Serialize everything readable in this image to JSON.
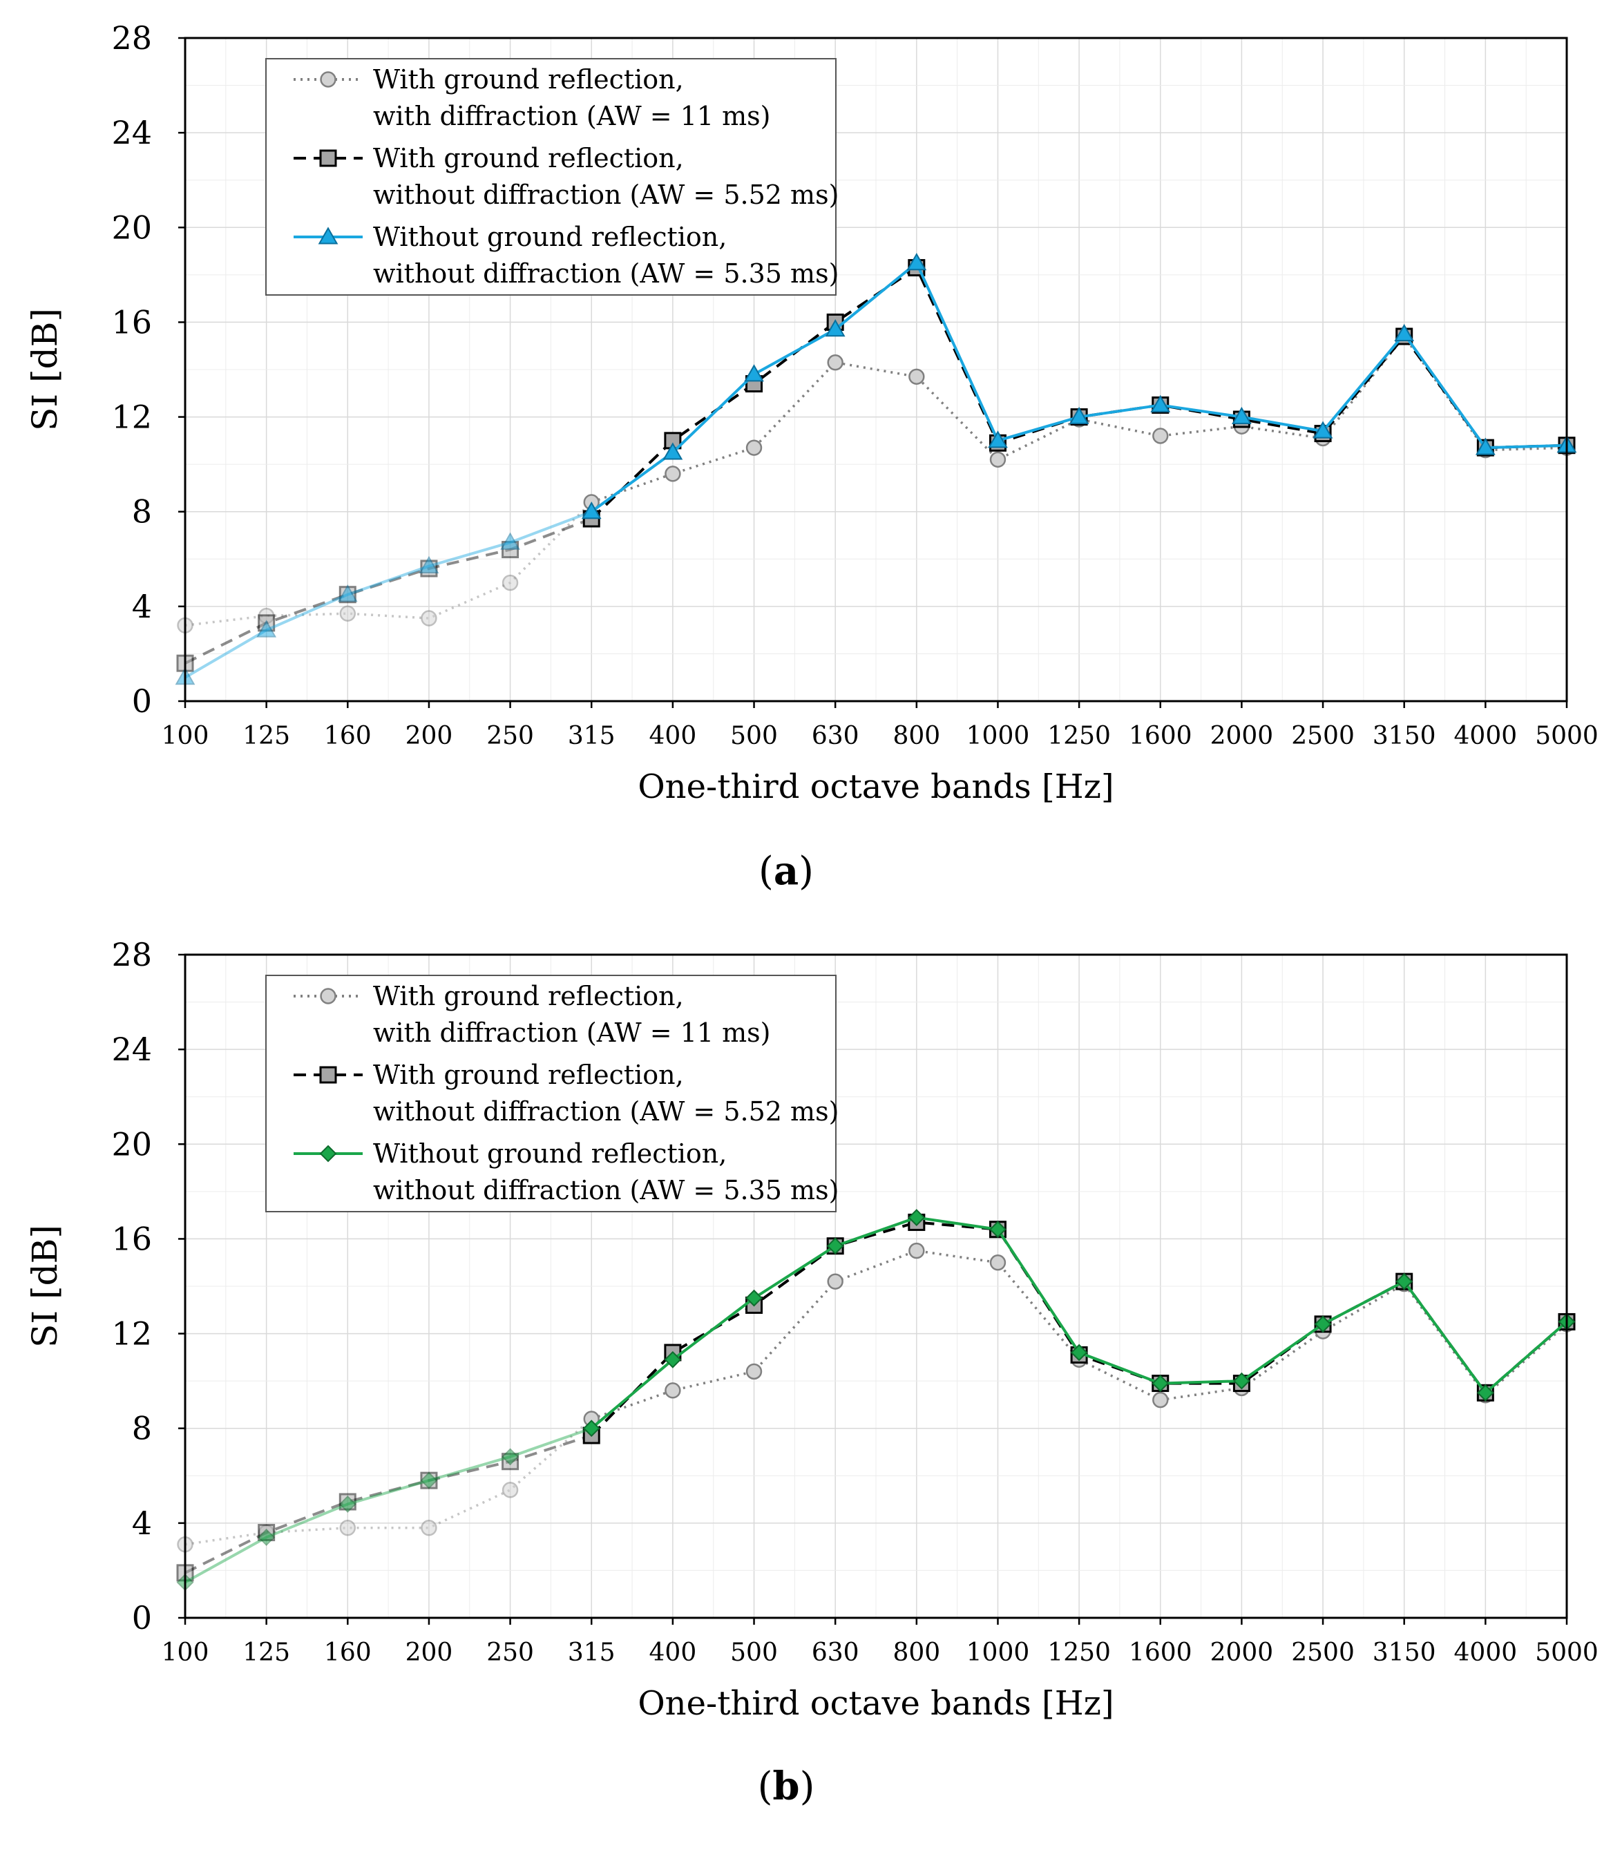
{
  "figure": {
    "panel_labels": [
      "(a)",
      "(b)"
    ]
  },
  "chart_data": [
    {
      "type": "line",
      "panel": "(a)",
      "xlabel": "One-third octave bands [Hz]",
      "ylabel": "SI [dB]",
      "ylim": [
        0,
        28
      ],
      "yticks": [
        0,
        4,
        8,
        12,
        16,
        20,
        24,
        28
      ],
      "categories": [
        "100",
        "125",
        "160",
        "200",
        "250",
        "315",
        "400",
        "500",
        "630",
        "800",
        "1000",
        "1250",
        "1600",
        "2000",
        "2500",
        "3150",
        "4000",
        "5000"
      ],
      "grid": true,
      "legend_position": "top-left",
      "series": [
        {
          "name": "With ground reflection,",
          "name2": "with diffraction (AW = 11 ms)",
          "style": "dotted",
          "marker": "circle",
          "color": "#808080",
          "fill": "#d3d3d3",
          "values": [
            3.2,
            3.6,
            3.7,
            3.5,
            5.0,
            8.4,
            9.6,
            10.7,
            14.3,
            13.7,
            10.2,
            11.9,
            11.2,
            11.6,
            11.1,
            15.4,
            10.6,
            10.7
          ]
        },
        {
          "name": "With ground reflection,",
          "name2": "without diffraction (AW = 5.52 ms)",
          "style": "dashed",
          "marker": "square",
          "color": "#000000",
          "fill": "#a6a6a6",
          "values": [
            1.6,
            3.3,
            4.5,
            5.6,
            6.4,
            7.7,
            11.0,
            13.4,
            16.0,
            18.3,
            10.9,
            12.0,
            12.5,
            11.9,
            11.3,
            15.4,
            10.7,
            10.8
          ]
        },
        {
          "name": "Without ground reflection,",
          "name2": "without diffraction (AW = 5.35 ms)",
          "style": "solid",
          "marker": "triangle",
          "color": "#1aa7e0",
          "fill": "#1aa7e0",
          "values": [
            1.0,
            3.0,
            4.5,
            5.7,
            6.7,
            8.0,
            10.5,
            13.8,
            15.7,
            18.5,
            11.0,
            12.0,
            12.5,
            12.0,
            11.4,
            15.5,
            10.7,
            10.8
          ]
        }
      ]
    },
    {
      "type": "line",
      "panel": "(b)",
      "xlabel": "One-third octave bands [Hz]",
      "ylabel": "SI [dB]",
      "ylim": [
        0,
        28
      ],
      "yticks": [
        0,
        4,
        8,
        12,
        16,
        20,
        24,
        28
      ],
      "categories": [
        "100",
        "125",
        "160",
        "200",
        "250",
        "315",
        "400",
        "500",
        "630",
        "800",
        "1000",
        "1250",
        "1600",
        "2000",
        "2500",
        "3150",
        "4000",
        "5000"
      ],
      "grid": true,
      "legend_position": "top-left",
      "series": [
        {
          "name": "With ground reflection,",
          "name2": "with diffraction (AW = 11 ms)",
          "style": "dotted",
          "marker": "circle",
          "color": "#808080",
          "fill": "#d3d3d3",
          "values": [
            3.1,
            3.6,
            3.8,
            3.8,
            5.4,
            8.4,
            9.6,
            10.4,
            14.2,
            15.5,
            15.0,
            10.9,
            9.2,
            9.7,
            12.1,
            14.1,
            9.4,
            12.4
          ]
        },
        {
          "name": "With ground reflection,",
          "name2": "without diffraction (AW = 5.52 ms)",
          "style": "dashed",
          "marker": "square",
          "color": "#000000",
          "fill": "#a6a6a6",
          "values": [
            1.9,
            3.6,
            4.9,
            5.8,
            6.6,
            7.7,
            11.2,
            13.2,
            15.7,
            16.7,
            16.4,
            11.1,
            9.9,
            9.9,
            12.4,
            14.2,
            9.5,
            12.5
          ]
        },
        {
          "name": "Without ground reflection,",
          "name2": "without diffraction (AW = 5.35 ms)",
          "style": "solid",
          "marker": "diamond",
          "color": "#1aa64a",
          "fill": "#1aa64a",
          "values": [
            1.5,
            3.4,
            4.8,
            5.8,
            6.8,
            8.0,
            10.9,
            13.5,
            15.7,
            16.9,
            16.4,
            11.2,
            9.9,
            10.0,
            12.4,
            14.2,
            9.5,
            12.5
          ]
        }
      ]
    }
  ]
}
